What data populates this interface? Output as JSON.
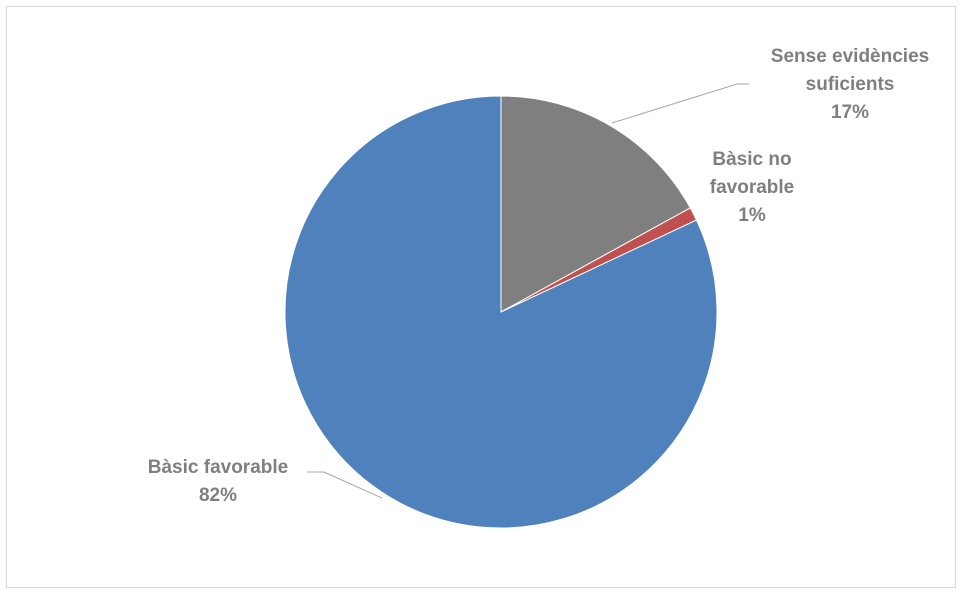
{
  "chart_data": {
    "type": "pie",
    "title": "",
    "slices": [
      {
        "label_lines": [
          "Sense evidències",
          "suficients"
        ],
        "percent_label": "17%",
        "value": 17,
        "color": "#7f7f7f"
      },
      {
        "label_lines": [
          "Bàsic no",
          "favorable"
        ],
        "percent_label": "1%",
        "value": 1,
        "color": "#c0504d"
      },
      {
        "label_lines": [
          "Bàsic favorable"
        ],
        "percent_label": "82%",
        "value": 82,
        "color": "#4f81bd"
      }
    ],
    "start_angle_deg": 0,
    "direction": "clockwise",
    "legend": "none",
    "label_color": "#7f7f7f",
    "leader_line_color": "#a6a6a6"
  }
}
